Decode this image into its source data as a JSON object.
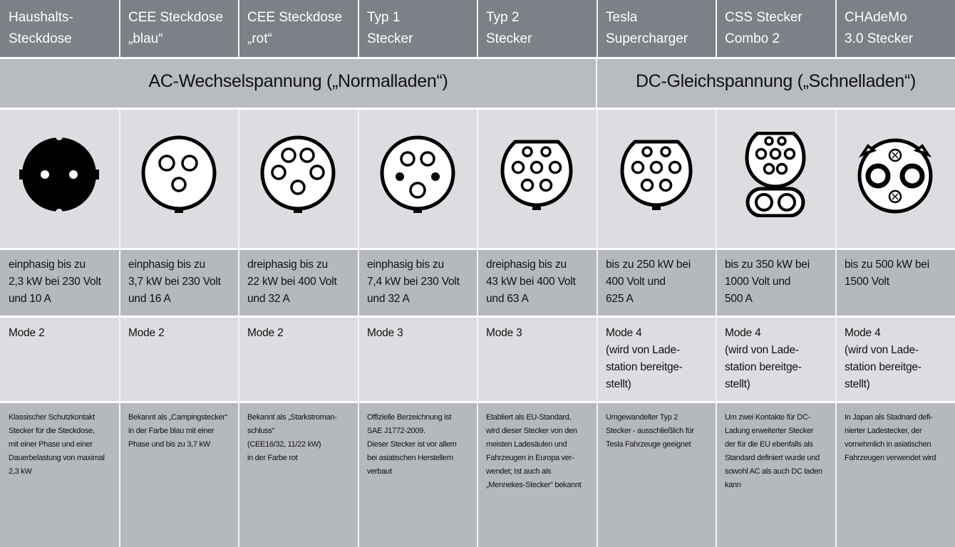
{
  "groups": {
    "ac": "AC-Wechselspannung („Normalladen“)",
    "dc": "DC-Gleichspannung („Schnelladen“)"
  },
  "columns": [
    {
      "name": "Haushalts-\nSteckdose",
      "icon": "schuko-socket-icon",
      "spec": "einphasig bis zu\n2,3 kW bei 230 Volt\nund 10 A",
      "mode": "Mode 2",
      "desc": "Klassischer Schutzkontakt\nStecker für die Steckdose,\nmit einer Phase und einer\nDauerbelastung von maximal\n2,3 kW"
    },
    {
      "name": "CEE Steckdose\n„blau“",
      "icon": "cee-blue-plug-icon",
      "spec": "einphasig bis zu\n3,7 kW bei 230 Volt\nund 16 A",
      "mode": "Mode 2",
      "desc": "Bekannt als „Campingstecker“\nin der Farbe blau mit einer\nPhase und bis zu 3,7 kW"
    },
    {
      "name": "CEE Steckdose\n„rot“",
      "icon": "cee-red-plug-icon",
      "spec": "dreiphasig bis zu\n22 kW bei 400 Volt\nund 32 A",
      "mode": "Mode 2",
      "desc": "Bekannt als „Starkstroman-\nschluss“\n(CEE16/32, 11/22 kW)\nin der Farbe rot"
    },
    {
      "name": "Typ 1\nStecker",
      "icon": "type1-plug-icon",
      "spec": "einphasig bis zu\n7,4 kW bei 230 Volt\nund 32 A",
      "mode": "Mode 3",
      "desc": "Offizielle Berzeichnung ist\nSAE J1772-2009.\nDieser Stecker ist vor allem\nbei asiatischen Herstellern\nverbaut"
    },
    {
      "name": "Typ 2\nStecker",
      "icon": "type2-plug-icon",
      "spec": "dreiphasig bis zu\n43 kW bei 400 Volt\nund 63 A",
      "mode": "Mode 3",
      "desc": "Etabliert als EU-Standard,\nwird dieser Stecker von den\nmeisten Ladesäulen und\nFahrzeugen in Europa ver-\nwendet; Ist auch als\n„Mennekes-Stecker“ bekannt"
    },
    {
      "name": "Tesla\nSupercharger",
      "icon": "tesla-supercharger-plug-icon",
      "spec": "bis zu 250 kW bei\n400 Volt und\n625 A",
      "mode": "Mode 4\n(wird von Lade-\nstation bereitge-\nstellt)",
      "desc": "Umgewandelter Typ 2\nStecker - ausschließlich für\nTesla Fahrzeuge geeignet"
    },
    {
      "name": "CSS Stecker\nCombo 2",
      "icon": "ccs-combo2-plug-icon",
      "spec": "bis zu 350 kW bei\n1000 Volt und\n500 A",
      "mode": "Mode 4\n(wird von Lade-\nstation bereitge-\nstellt)",
      "desc": "Um zwei Kontakte für DC-\nLadung erweiterter Stecker\nder für die EU ebenfalls als\nStandard definiert wurde und\nsowohl AC als auch DC laden\nkann"
    },
    {
      "name": "CHAdeMo\n3.0 Stecker",
      "icon": "chademo-plug-icon",
      "spec": "bis zu 500 kW bei\n1500 Volt",
      "mode": "Mode 4\n(wird von Lade-\nstation bereitge-\nstellt)",
      "desc": "In Japan als Stadnard defi-\nnierter Ladestecker, der\nvornehmlich in asiatischen\nFahrzeugen verwendet wird"
    }
  ],
  "colors": {
    "header": "#7b8187",
    "group": "#b8bbbf",
    "light": "#dcdde0",
    "dark": "#b5b8bc"
  }
}
